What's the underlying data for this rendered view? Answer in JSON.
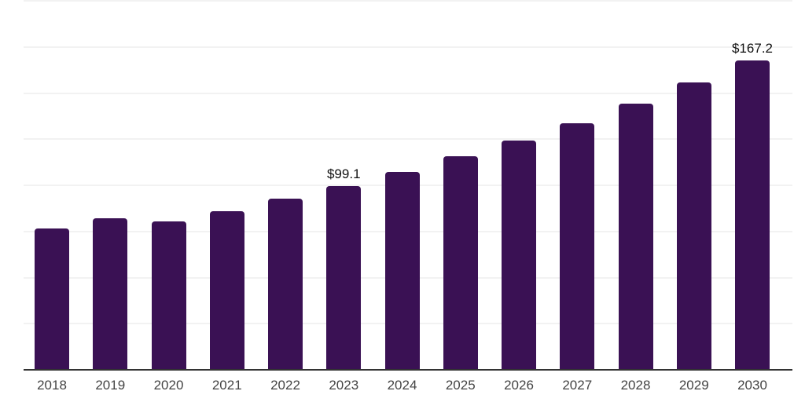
{
  "chart_data": {
    "type": "bar",
    "title": "",
    "categories": [
      "2018",
      "2019",
      "2020",
      "2021",
      "2022",
      "2023",
      "2024",
      "2025",
      "2026",
      "2027",
      "2028",
      "2029",
      "2030"
    ],
    "values": [
      76.2,
      81.9,
      80.0,
      85.7,
      92.3,
      99.1,
      106.8,
      115.2,
      123.7,
      133.4,
      143.8,
      155.5,
      167.2
    ],
    "data_labels": [
      {
        "category": "2023",
        "text": "$99.1"
      },
      {
        "category": "2030",
        "text": "$167.2"
      }
    ],
    "xlabel": "",
    "ylabel": "",
    "ylim": [
      0,
      200
    ],
    "grid_step": 25,
    "grid_on": true,
    "legend_position": "none",
    "y_tick_labels_shown": false,
    "colors": {
      "bar": "#3A1154",
      "gridline": "#f2f2f2",
      "axis_line": "#333333",
      "x_tick_label": "#444444",
      "data_label": "#111111",
      "background": "#ffffff"
    }
  }
}
